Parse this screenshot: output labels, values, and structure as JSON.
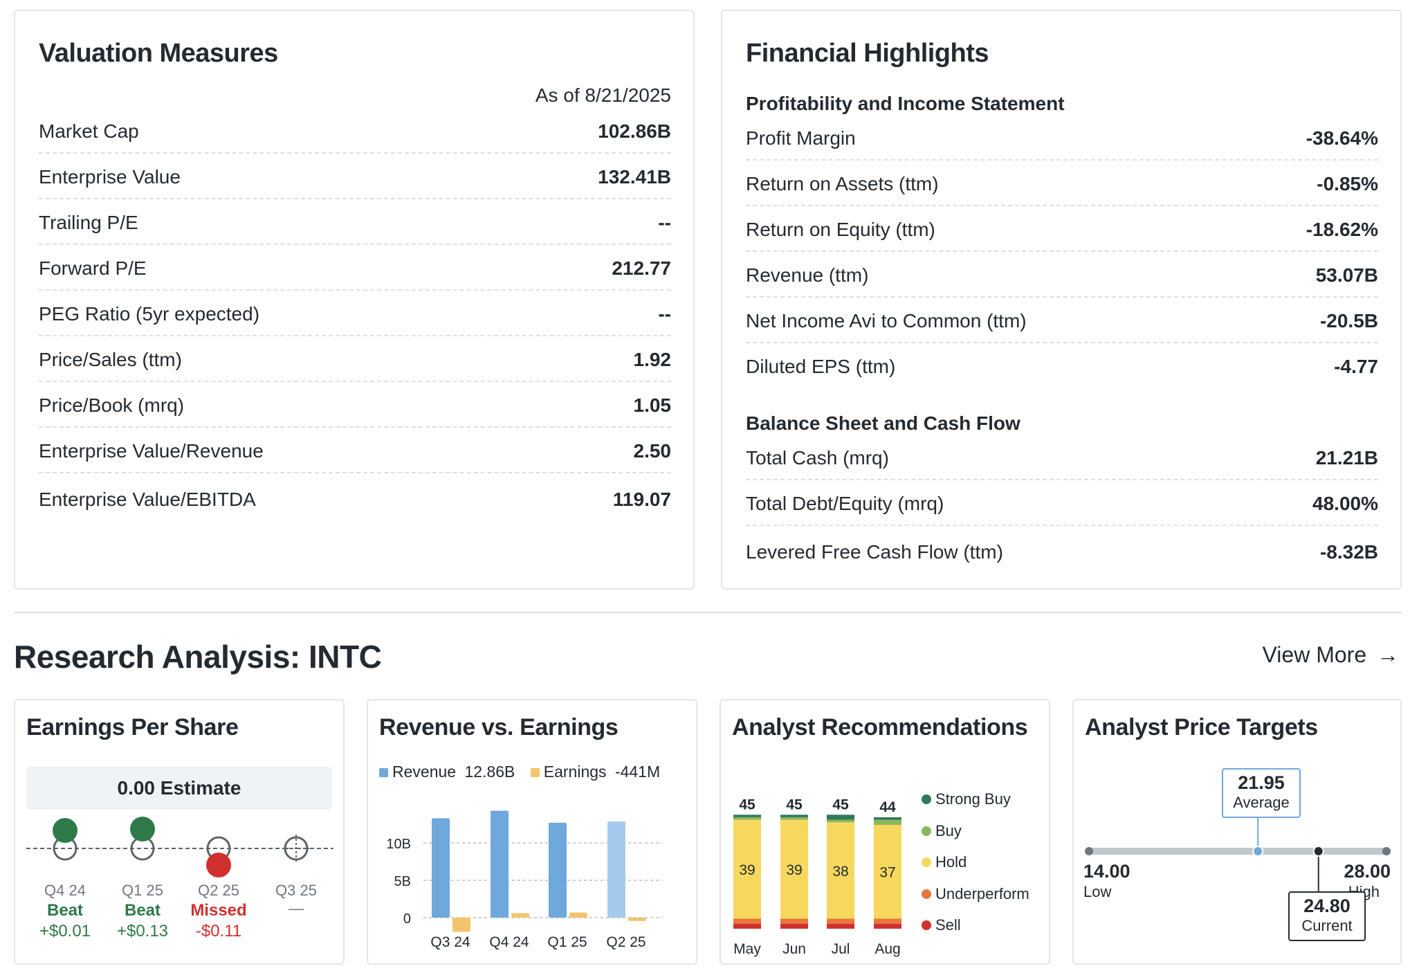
{
  "valuation": {
    "title": "Valuation Measures",
    "as_of": "As of 8/21/2025",
    "rows": [
      {
        "label": "Market Cap",
        "value": "102.86B"
      },
      {
        "label": "Enterprise Value",
        "value": "132.41B"
      },
      {
        "label": "Trailing P/E",
        "value": "--"
      },
      {
        "label": "Forward P/E",
        "value": "212.77"
      },
      {
        "label": "PEG Ratio (5yr expected)",
        "value": "--"
      },
      {
        "label": "Price/Sales (ttm)",
        "value": "1.92"
      },
      {
        "label": "Price/Book (mrq)",
        "value": "1.05"
      },
      {
        "label": "Enterprise Value/Revenue",
        "value": "2.50"
      },
      {
        "label": "Enterprise Value/EBITDA",
        "value": "119.07"
      }
    ]
  },
  "financials": {
    "title": "Financial Highlights",
    "section1": "Profitability and Income Statement",
    "rows1": [
      {
        "label": "Profit Margin",
        "value": "-38.64%"
      },
      {
        "label": "Return on Assets (ttm)",
        "value": "-0.85%"
      },
      {
        "label": "Return on Equity (ttm)",
        "value": "-18.62%"
      },
      {
        "label": "Revenue (ttm)",
        "value": "53.07B"
      },
      {
        "label": "Net Income Avi to Common (ttm)",
        "value": "-20.5B"
      },
      {
        "label": "Diluted EPS (ttm)",
        "value": "-4.77"
      }
    ],
    "section2": "Balance Sheet and Cash Flow",
    "rows2": [
      {
        "label": "Total Cash (mrq)",
        "value": "21.21B"
      },
      {
        "label": "Total Debt/Equity (mrq)",
        "value": "48.00%"
      },
      {
        "label": "Levered Free Cash Flow (ttm)",
        "value": "-8.32B"
      }
    ]
  },
  "research": {
    "title": "Research Analysis: INTC",
    "view_more": "View More",
    "arrow": "→"
  },
  "eps": {
    "title": "Earnings Per Share",
    "estimate_label": "0.00 Estimate",
    "quarters": [
      {
        "q": "Q4 24",
        "result": "Beat",
        "diff": "+$0.01",
        "status": "beat"
      },
      {
        "q": "Q1 25",
        "result": "Beat",
        "diff": "+$0.13",
        "status": "beat"
      },
      {
        "q": "Q2 25",
        "result": "Missed",
        "diff": "-$0.11",
        "status": "missed"
      },
      {
        "q": "Q3 25",
        "result": "",
        "diff": "—",
        "status": "pending"
      }
    ]
  },
  "rev_earn": {
    "title": "Revenue vs. Earnings",
    "legend_rev_name": "Revenue",
    "legend_rev_value": "12.86B",
    "legend_earn_name": "Earnings",
    "legend_earn_value": "-441M",
    "y_ticks": [
      "10B",
      "5B",
      "0"
    ]
  },
  "analyst_rec": {
    "title": "Analyst Recommendations",
    "legend": [
      "Strong Buy",
      "Buy",
      "Hold",
      "Underperform",
      "Sell"
    ],
    "colors": [
      "#2f7a5a",
      "#8fb65b",
      "#f7d85f",
      "#e8773a",
      "#d0302f"
    ]
  },
  "price_targets": {
    "title": "Analyst Price Targets",
    "average_value": "21.95",
    "average_label": "Average",
    "low_value": "14.00",
    "low_label": "Low",
    "high_value": "28.00",
    "high_label": "High",
    "current_value": "24.80",
    "current_label": "Current"
  },
  "chart_data": [
    {
      "type": "bar",
      "title": "Revenue vs. Earnings",
      "categories": [
        "Q3 24",
        "Q4 24",
        "Q1 25",
        "Q2 25"
      ],
      "series": [
        {
          "name": "Revenue",
          "values": [
            13.3,
            14.3,
            12.7,
            12.86
          ]
        },
        {
          "name": "Earnings",
          "values": [
            -1.9,
            0.6,
            0.7,
            -0.441
          ]
        }
      ],
      "y_ticks": [
        "10B",
        "5B",
        "0"
      ],
      "ylim": [
        -2.5,
        15
      ]
    },
    {
      "type": "bar",
      "title": "Analyst Recommendations",
      "categories": [
        "May",
        "Jun",
        "Jul",
        "Aug"
      ],
      "totals": [
        45,
        45,
        45,
        44
      ],
      "series": [
        {
          "name": "Sell",
          "values": [
            2,
            2,
            2,
            2
          ]
        },
        {
          "name": "Underperform",
          "values": [
            2,
            2,
            2,
            2
          ]
        },
        {
          "name": "Hold",
          "values": [
            39,
            39,
            38,
            37
          ]
        },
        {
          "name": "Buy",
          "values": [
            1,
            1,
            1,
            2
          ]
        },
        {
          "name": "Strong Buy",
          "values": [
            1,
            1,
            2,
            1
          ]
        }
      ]
    },
    {
      "type": "scatter",
      "title": "Analyst Price Targets",
      "low": 14.0,
      "average": 21.95,
      "current": 24.8,
      "high": 28.0
    }
  ]
}
